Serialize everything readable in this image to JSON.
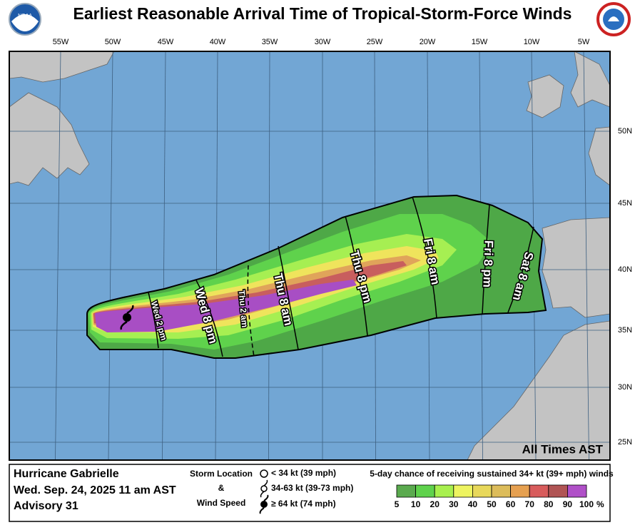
{
  "header": {
    "title": "Earliest Reasonable Arrival Time of Tropical-Storm-Force Winds"
  },
  "map": {
    "lon_labels": [
      "55W",
      "50W",
      "45W",
      "40W",
      "35W",
      "30W",
      "25W",
      "20W",
      "15W",
      "10W",
      "5W"
    ],
    "lat_labels": [
      "50N",
      "45N",
      "40N",
      "35N",
      "30N",
      "25N"
    ],
    "time_labels": [
      "Wed 2 pm",
      "Wed 8 pm",
      "Thu 2 am",
      "Thu 8 am",
      "Thu 8 pm",
      "Fri 8 am",
      "Fri 8 pm",
      "Sat 8 am"
    ],
    "note": "All Times AST"
  },
  "footer": {
    "storm_name": "Hurricane Gabrielle",
    "date": "Wed. Sep. 24, 2025  11 am AST",
    "advisory": "Advisory 31",
    "key": {
      "title1": "Storm Location",
      "title2": "&",
      "title3": "Wind Speed",
      "items": [
        "< 34 kt (39 mph)",
        "34-63 kt (39-73 mph)",
        "≥ 64 kt (74 mph)"
      ]
    },
    "colorbar": {
      "title": "5-day chance of receiving sustained 34+ kt (39+ mph) winds",
      "labels": [
        "5",
        "10",
        "20",
        "30",
        "40",
        "50",
        "60",
        "70",
        "80",
        "90",
        "100"
      ],
      "unit": "%",
      "colors": [
        "#5aaa4e",
        "#5fd24c",
        "#a8f04e",
        "#eef460",
        "#e8d85a",
        "#dcbc5a",
        "#e6a050",
        "#d85c5c",
        "#b05454",
        "#b050c8"
      ]
    }
  }
}
